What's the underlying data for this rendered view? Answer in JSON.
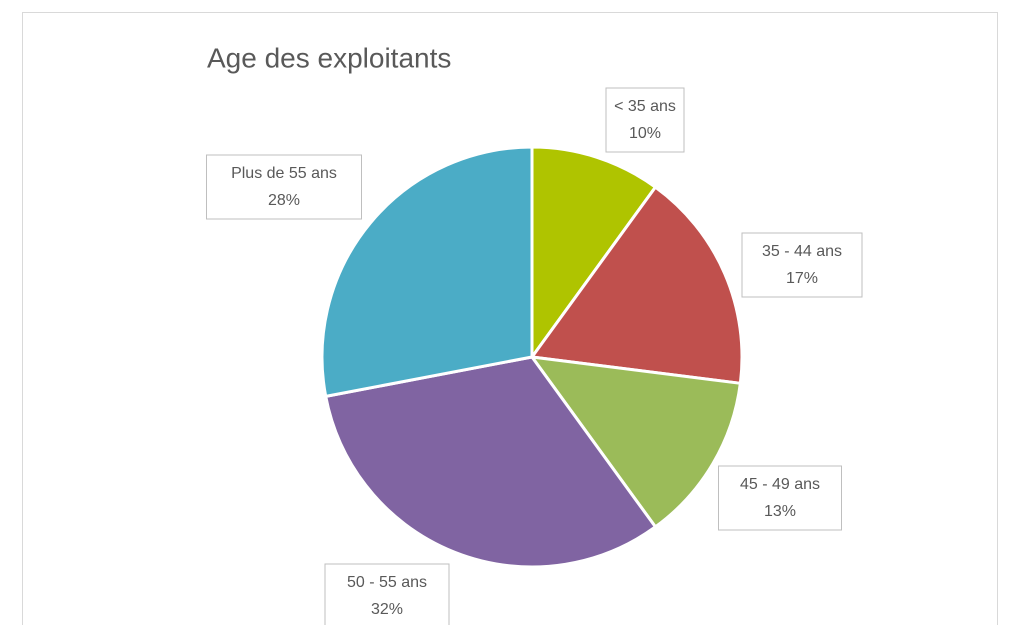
{
  "chart_data": {
    "type": "pie",
    "title": "Age des exploitants",
    "categories": [
      "< 35 ans",
      "35 - 44 ans",
      "45 - 49 ans",
      "50 - 55 ans",
      "Plus de 55 ans"
    ],
    "values": [
      10,
      17,
      13,
      32,
      28
    ],
    "value_labels": [
      "10%",
      "17%",
      "13%",
      "32%",
      "28%"
    ],
    "colors": [
      "#afc400",
      "#c0504d",
      "#9bbb59",
      "#8064a2",
      "#4bacc6"
    ]
  }
}
